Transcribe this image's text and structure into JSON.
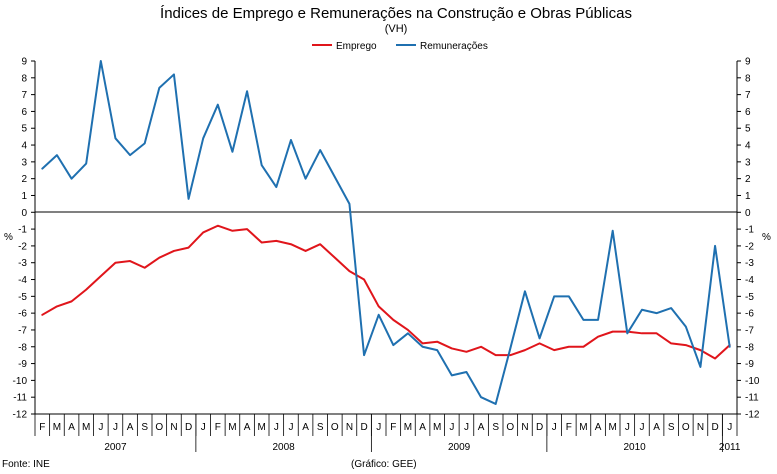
{
  "chart_data": {
    "type": "line",
    "title": "Índices de Emprego e Remunerações na Construção e Obras Públicas",
    "subtitle": "(VH)",
    "ylabel_left": "%",
    "ylabel_right": "%",
    "ylim": [
      -12,
      9
    ],
    "yticks": [
      -12,
      -11,
      -10,
      -9,
      -8,
      -7,
      -6,
      -5,
      -4,
      -3,
      -2,
      -1,
      0,
      1,
      2,
      3,
      4,
      5,
      6,
      7,
      8,
      9
    ],
    "legend_position": "top-center",
    "grid": false,
    "source_note": "Fonte: INE",
    "credit_note": "(Gráfico: GEE)",
    "x": [
      "F",
      "M",
      "A",
      "M",
      "J",
      "J",
      "A",
      "S",
      "O",
      "N",
      "D",
      "J",
      "F",
      "M",
      "A",
      "M",
      "J",
      "J",
      "A",
      "S",
      "O",
      "N",
      "D",
      "J",
      "F",
      "M",
      "A",
      "M",
      "J",
      "J",
      "A",
      "S",
      "O",
      "N",
      "D",
      "J",
      "F",
      "M",
      "A",
      "M",
      "J",
      "J",
      "A",
      "S",
      "O",
      "N",
      "D",
      "J"
    ],
    "years": [
      {
        "label": "2007",
        "months": 11
      },
      {
        "label": "2008",
        "months": 12
      },
      {
        "label": "2009",
        "months": 12
      },
      {
        "label": "2010",
        "months": 12
      },
      {
        "label": "2011",
        "months": 1
      }
    ],
    "series": [
      {
        "name": "Emprego",
        "color": "#e0151b",
        "values": [
          -6.1,
          -5.6,
          -5.3,
          -4.6,
          -3.8,
          -3.0,
          -2.9,
          -3.3,
          -2.7,
          -2.3,
          -2.1,
          -1.2,
          -0.8,
          -1.1,
          -1.0,
          -1.8,
          -1.7,
          -1.9,
          -2.3,
          -1.9,
          -2.7,
          -3.5,
          -4.0,
          -5.6,
          -6.4,
          -7.0,
          -7.8,
          -7.7,
          -8.1,
          -8.3,
          -8.0,
          -8.5,
          -8.5,
          -8.2,
          -7.8,
          -8.2,
          -8.0,
          -8.0,
          -7.4,
          -7.1,
          -7.1,
          -7.2,
          -7.2,
          -7.8,
          -7.9,
          -8.2,
          -8.7,
          -7.9
        ]
      },
      {
        "name": "Remunerações",
        "color": "#1f70b0",
        "values": [
          2.6,
          3.4,
          2.0,
          2.9,
          9.0,
          4.4,
          3.4,
          4.1,
          7.4,
          8.2,
          0.8,
          4.4,
          6.4,
          3.6,
          7.2,
          2.8,
          1.5,
          4.3,
          2.0,
          3.7,
          2.1,
          0.5,
          -8.5,
          -6.1,
          -7.9,
          -7.2,
          -8.0,
          -8.2,
          -9.7,
          -9.5,
          -11.0,
          -11.4,
          -8.1,
          -4.7,
          -7.5,
          -5.0,
          -5.0,
          -6.4,
          -6.4,
          -1.1,
          -7.2,
          -5.8,
          -6.0,
          -5.7,
          -6.8,
          -9.2,
          -2.0,
          -8.0
        ]
      }
    ]
  }
}
